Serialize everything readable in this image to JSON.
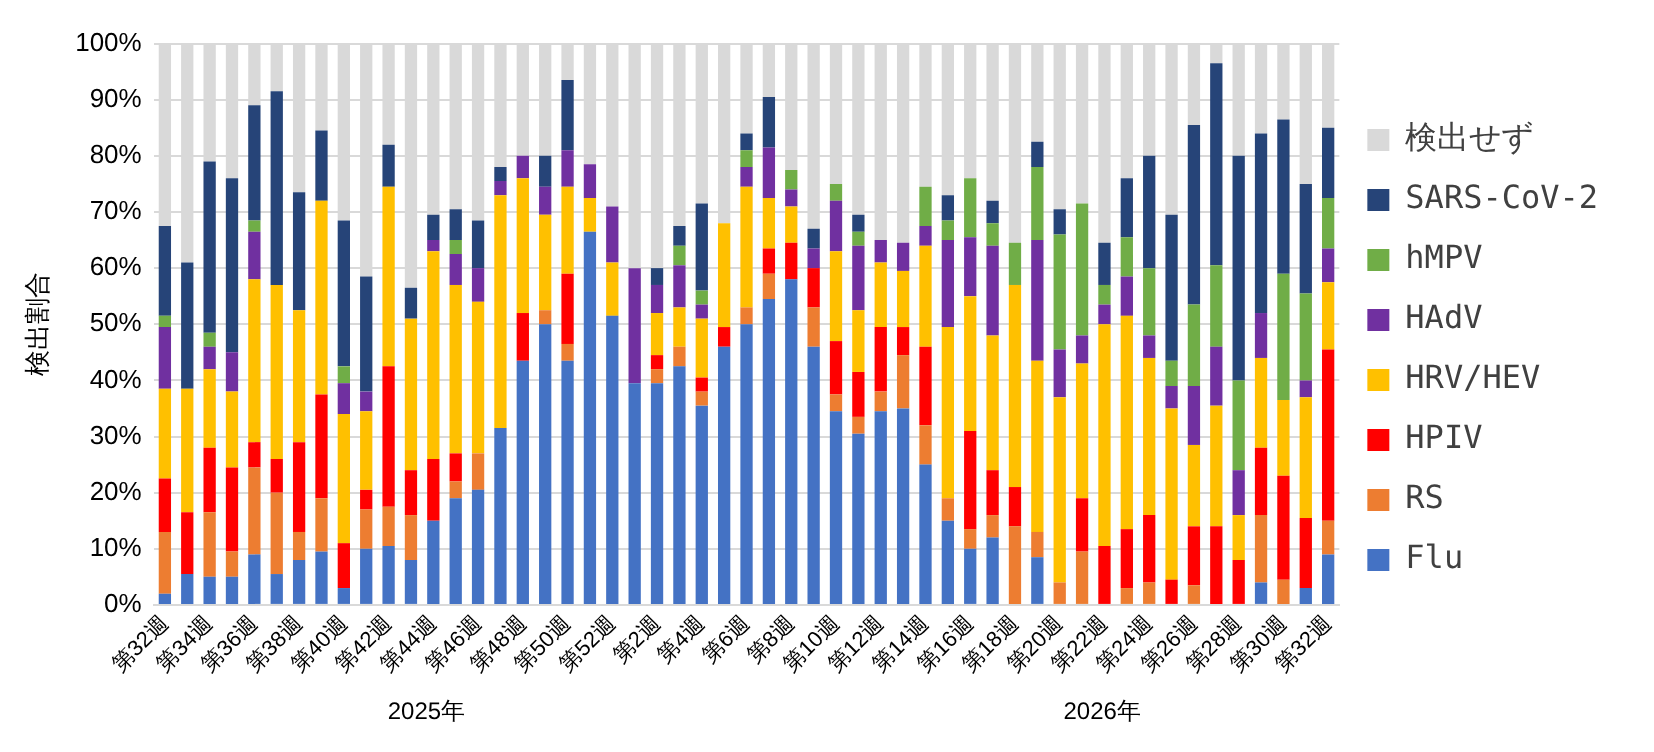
{
  "chart_data": {
    "type": "bar",
    "stacked": true,
    "ylabel": "検出割合",
    "categories": [
      "第32週",
      null,
      "第34週",
      null,
      "第36週",
      null,
      "第38週",
      null,
      "第40週",
      null,
      "第42週",
      null,
      "第44週",
      null,
      "第46週",
      null,
      "第48週",
      null,
      "第50週",
      null,
      "第52週",
      null,
      "第2週",
      null,
      "第4週",
      null,
      "第6週",
      null,
      "第8週",
      null,
      "第10週",
      null,
      "第12週",
      null,
      "第14週",
      null,
      "第16週",
      null,
      "第18週",
      null,
      "第20週",
      null,
      "第22週",
      null,
      "第24週",
      null,
      "第26週",
      null,
      "第28週",
      null,
      "第30週",
      null,
      "第32週"
    ],
    "series": [
      {
        "name": "Flu",
        "color": "#4472c4",
        "values": [
          2,
          5.5,
          5,
          5,
          9,
          5.5,
          8,
          9.5,
          3,
          10,
          10.5,
          8,
          15,
          19,
          20.5,
          31.5,
          43.5,
          50,
          43.5,
          66.5,
          51.5,
          39.5,
          39.5,
          42.5,
          35.5,
          46,
          50,
          54.5,
          58,
          46,
          34.5,
          30.5,
          34.5,
          35,
          25,
          15,
          10,
          12,
          0,
          8.5,
          0,
          0,
          0,
          0,
          0,
          0,
          0,
          0,
          0,
          4,
          0,
          3,
          9
        ]
      },
      {
        "name": "RS",
        "color": "#ed7d31",
        "values": [
          11,
          0,
          11.5,
          4.5,
          15.5,
          14.5,
          5,
          9.5,
          0,
          7,
          7,
          8,
          0,
          3,
          6.5,
          0,
          0,
          2.5,
          3,
          0,
          0,
          0,
          2.5,
          3.5,
          2.5,
          0,
          3,
          4.5,
          0,
          7,
          3,
          3,
          3.5,
          9.5,
          7,
          4,
          3.5,
          4,
          14,
          4.5,
          4,
          9.5,
          0,
          3,
          4,
          0,
          3.5,
          0,
          0,
          12,
          4.5,
          0,
          6
        ]
      },
      {
        "name": "HPIV",
        "color": "#ff0000",
        "values": [
          9.5,
          11,
          11.5,
          15,
          4.5,
          6,
          16,
          18.5,
          8,
          3.5,
          25,
          8,
          11,
          5,
          0,
          0,
          8.5,
          0,
          12.5,
          0,
          0,
          0,
          2.5,
          0,
          2.5,
          3.5,
          0,
          4.5,
          6.5,
          7,
          9.5,
          8,
          11.5,
          5,
          14,
          0,
          17.5,
          8,
          7,
          0,
          0,
          9.5,
          10.5,
          10.5,
          12,
          4.5,
          10.5,
          14,
          8,
          12,
          18.5,
          12.5,
          30.5
        ]
      },
      {
        "name": "HRV/HEV",
        "color": "#ffc000",
        "values": [
          16,
          22,
          14,
          13.5,
          29,
          31,
          23.5,
          34.5,
          23,
          14,
          32,
          27,
          37,
          30,
          27,
          41.5,
          24,
          17,
          15.5,
          6,
          9.5,
          0,
          7.5,
          7,
          10.5,
          18.5,
          21.5,
          9,
          6.5,
          0,
          16,
          11,
          11.5,
          10,
          18,
          30.5,
          24,
          24,
          36,
          30.5,
          33,
          24,
          39.5,
          38,
          28,
          30.5,
          14.5,
          21.5,
          8,
          16,
          13.5,
          21.5,
          12
        ]
      },
      {
        "name": "HAdV",
        "color": "#7030a0",
        "values": [
          11,
          0,
          4,
          7,
          8.5,
          0,
          0,
          0,
          5.5,
          3.5,
          0,
          0,
          2,
          5.5,
          6,
          2.5,
          4,
          5,
          6.5,
          6,
          10,
          20.5,
          5,
          7.5,
          2.5,
          0,
          3.5,
          9,
          3,
          3.5,
          9,
          11.5,
          4,
          5,
          3.5,
          15.5,
          10.5,
          16,
          0,
          21.5,
          8.5,
          5,
          3.5,
          7,
          4,
          4,
          10.5,
          10.5,
          8,
          8,
          0,
          3,
          6
        ]
      },
      {
        "name": "hMPV",
        "color": "#70ad47",
        "values": [
          2,
          0,
          2.5,
          0,
          2,
          0,
          0,
          0,
          3,
          0,
          0,
          0,
          0,
          2.5,
          0,
          0,
          0,
          0,
          0,
          0,
          0,
          0,
          0,
          3.5,
          2.5,
          0,
          3,
          0,
          3.5,
          0,
          3,
          2.5,
          0,
          0,
          7,
          3.5,
          10.5,
          4,
          7.5,
          13,
          20.5,
          23.5,
          3.5,
          7,
          12,
          4.5,
          14.5,
          14.5,
          16,
          0,
          22.5,
          15.5,
          9
        ]
      },
      {
        "name": "SARS-CoV-2",
        "color": "#264478",
        "values": [
          16,
          22.5,
          30.5,
          31,
          20.5,
          34.5,
          21,
          12.5,
          26,
          20.5,
          7.5,
          5.5,
          4.5,
          5.5,
          8.5,
          2.5,
          0,
          5.5,
          12.5,
          0,
          0,
          0,
          3,
          3.5,
          15.5,
          0,
          3,
          9,
          0,
          3.5,
          0,
          3,
          0,
          0,
          0,
          4.5,
          0,
          4,
          0,
          4.5,
          4.5,
          0,
          7.5,
          10.5,
          20,
          26,
          32,
          36,
          40,
          32,
          27.5,
          19.5,
          12.5
        ]
      },
      {
        "name": "検出せず",
        "color": "#d9d9d9",
        "values": [
          32.5,
          39,
          21,
          24,
          11,
          8.5,
          26.5,
          15.5,
          31.5,
          41.5,
          18,
          43.5,
          30.5,
          29.5,
          31.5,
          22,
          20,
          20,
          6.5,
          21.5,
          29,
          40,
          40,
          32.5,
          28.5,
          32,
          16,
          9.5,
          22.5,
          33,
          25,
          30.5,
          35,
          35.5,
          25.5,
          27,
          24,
          28,
          35.5,
          17.5,
          29.5,
          28.5,
          35.5,
          24,
          20,
          30.5,
          14.5,
          3.5,
          20,
          16,
          13.5,
          25,
          15
        ]
      }
    ],
    "ylim": [
      0,
      100
    ],
    "yticks": [
      {
        "value": 0,
        "label": "0%"
      },
      {
        "value": 10,
        "label": "10%"
      },
      {
        "value": 20,
        "label": "20%"
      },
      {
        "value": 30,
        "label": "30%"
      },
      {
        "value": 40,
        "label": "40%"
      },
      {
        "value": 50,
        "label": "50%"
      },
      {
        "value": 60,
        "label": "60%"
      },
      {
        "value": 70,
        "label": "70%"
      },
      {
        "value": 80,
        "label": "80%"
      },
      {
        "value": 90,
        "label": "90%"
      },
      {
        "value": 100,
        "label": "100%"
      }
    ],
    "grid": "y",
    "legend": "right",
    "annotations": [
      "2025年",
      "2026年"
    ]
  }
}
